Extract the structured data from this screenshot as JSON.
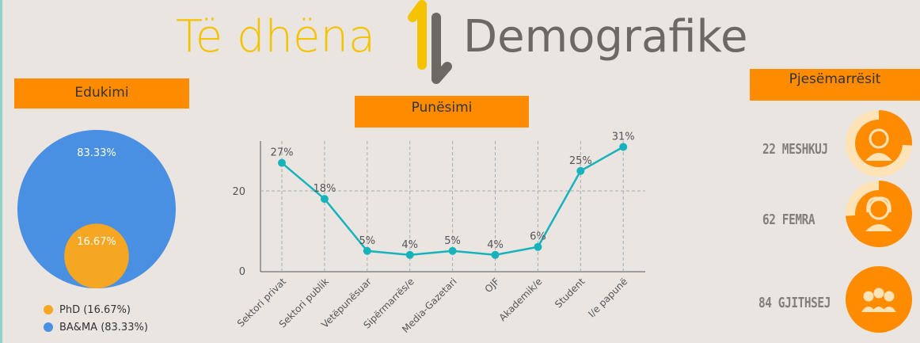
{
  "title": {
    "part1": "Të dhëna",
    "part2": "Demografike"
  },
  "sections": {
    "education": "Edukimi",
    "employment": "Punësimi",
    "participants": "Pjesëmarrësit"
  },
  "colors": {
    "accent": "#ff8c00",
    "yellow": "#f4c300",
    "blue": "#4a90e2",
    "orange_circle": "#f5a623",
    "teal": "#16b3bd",
    "grey_text": "#6e6863"
  },
  "chart_data": [
    {
      "type": "pie",
      "style": "nested-circles",
      "labels": [
        "PhD (16.67%)",
        "BA&MA (83.33%)"
      ],
      "values": [
        16.67,
        83.33
      ],
      "data_labels": [
        "16.67%",
        "83.33%"
      ],
      "colors": [
        "#f5a623",
        "#4a90e2"
      ],
      "legend_position": "bottom"
    },
    {
      "type": "line",
      "categories": [
        "Sektori privat",
        "Sektori publik",
        "Vetëpunësuar",
        "Sipërmarrës/e",
        "Media-Gazetari",
        "OJF",
        "Akademik/e",
        "Student",
        "I/e papunë"
      ],
      "series": [
        {
          "values": [
            27,
            18,
            5,
            4,
            5,
            4,
            6,
            25,
            31
          ]
        }
      ],
      "data_labels": [
        "27%",
        "18%",
        "5%",
        "4%",
        "5%",
        "4%",
        "6%",
        "25%",
        "31%"
      ],
      "yticks": [
        "0",
        "20"
      ],
      "ylim": [
        0,
        33
      ],
      "grid": true,
      "color": "#16b3bd"
    }
  ],
  "participants": [
    {
      "label": "22 MESHKUJ",
      "fraction": 0.26,
      "icon": "male-avatar-icon"
    },
    {
      "label": "62 FEMRA",
      "fraction": 0.74,
      "icon": "female-avatar-icon"
    },
    {
      "label": "84 GJITHSEJ",
      "fraction": 1.0,
      "icon": "group-avatar-icon"
    }
  ]
}
